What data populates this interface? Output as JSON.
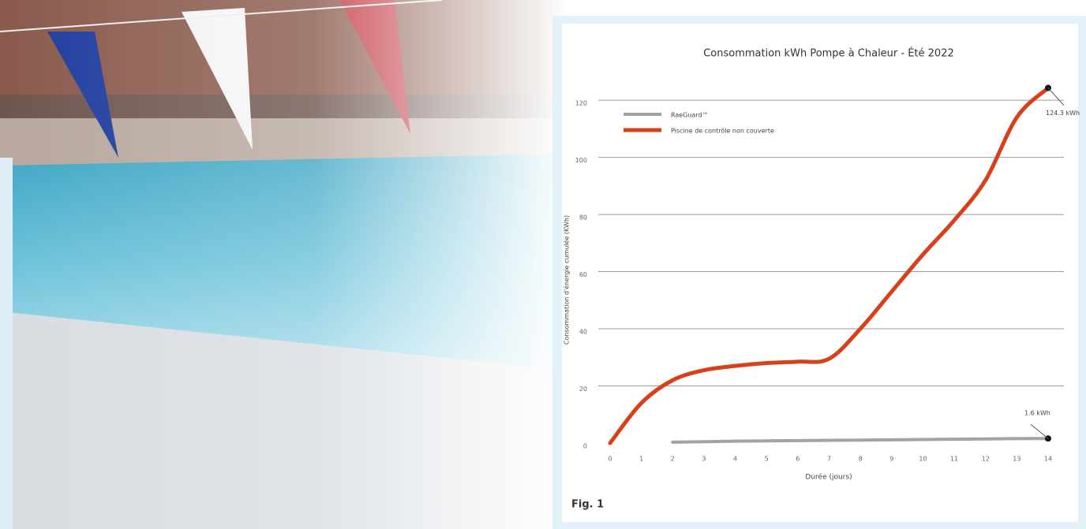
{
  "chart_data": {
    "type": "line",
    "title": "Consommation kWh Pompe à Chaleur - Été 2022",
    "x_label": "Durée (jours)",
    "y_label": "Consommation d'énergie cumulée (KWh)",
    "caption": "Fig. 1",
    "series": [
      {
        "name": "RaeGuard™",
        "color": "#a3a3a3",
        "x": [
          2,
          3,
          4,
          5,
          6,
          7,
          8,
          9,
          10,
          11,
          12,
          13,
          14
        ],
        "values": [
          0.3,
          0.5,
          0.65,
          0.75,
          0.85,
          0.95,
          1.05,
          1.15,
          1.25,
          1.35,
          1.45,
          1.55,
          1.6
        ]
      },
      {
        "name": "Piscine de contrôle non couverte",
        "color": "#d8401c",
        "x": [
          0,
          1,
          2,
          3,
          4,
          5,
          6,
          7,
          8,
          9,
          10,
          11,
          12,
          13,
          14
        ],
        "values": [
          0,
          14,
          22,
          25.5,
          27,
          28,
          28.5,
          29.5,
          40,
          53,
          66,
          78,
          92,
          114,
          124.3
        ]
      }
    ],
    "annotations": [
      "1.6 kWh",
      "124.3 kWh"
    ],
    "xlim": [
      0,
      14
    ],
    "xticks": [
      0,
      1,
      2,
      3,
      4,
      5,
      6,
      7,
      8,
      9,
      10,
      11,
      12,
      13,
      14
    ],
    "ylim": [
      0,
      125
    ],
    "yticks": [
      0,
      20,
      40,
      60,
      80,
      100,
      120
    ],
    "grid": true,
    "legend": "upper-left"
  }
}
